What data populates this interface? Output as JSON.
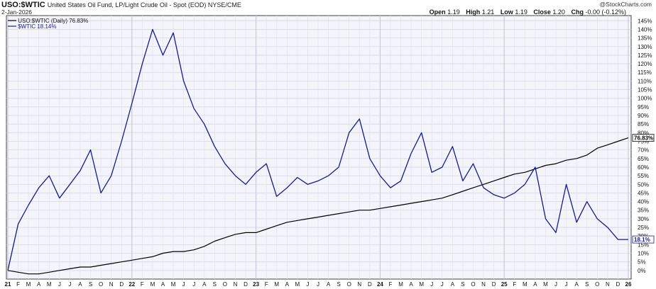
{
  "header": {
    "symbol": "USO:$WTIC",
    "description": "United States Oil Fund, LP/Light Crude Oil - Spot (EOD) NYSE/CME",
    "date": "2-Jan-2026",
    "watermark": "@StockCharts.com",
    "open_label": "Open",
    "open": "1.19",
    "high_label": "High",
    "high": "1.21",
    "low_label": "Low",
    "low": "1.19",
    "close_label": "Close",
    "close": "1.20",
    "chg_label": "Chg",
    "chg": "-0.00 (-0.12%)"
  },
  "colors": {
    "ratio": "#000000",
    "wtic": "#1a1a8c",
    "plot_bg": "#f4f4fb"
  },
  "chart_data": {
    "type": "line",
    "y_unit": "%",
    "ylim": [
      -5,
      148
    ],
    "yticks": [
      "0%",
      "5%",
      "10%",
      "15%",
      "20%",
      "25%",
      "30%",
      "35%",
      "40%",
      "45%",
      "50%",
      "55%",
      "60%",
      "65%",
      "70%",
      "75%",
      "80%",
      "85%",
      "90%",
      "95%",
      "100%",
      "105%",
      "110%",
      "115%",
      "120%",
      "125%",
      "130%",
      "135%",
      "140%",
      "145%"
    ],
    "x_tick_labels": [
      "21",
      "F",
      "M",
      "A",
      "M",
      "J",
      "J",
      "A",
      "S",
      "O",
      "N",
      "D",
      "22",
      "F",
      "M",
      "A",
      "M",
      "J",
      "J",
      "A",
      "S",
      "O",
      "N",
      "D",
      "23",
      "F",
      "M",
      "A",
      "M",
      "J",
      "J",
      "A",
      "S",
      "O",
      "N",
      "D",
      "24",
      "F",
      "M",
      "A",
      "M",
      "J",
      "J",
      "A",
      "S",
      "O",
      "N",
      "D",
      "25",
      "F",
      "M",
      "A",
      "M",
      "J",
      "J",
      "A",
      "S",
      "O",
      "N",
      "D",
      "26"
    ],
    "legend": [
      {
        "label": "USO:$WTIC (Daily) 76.83%"
      },
      {
        "label": "$WTIC 18.14%"
      }
    ],
    "end_labels": {
      "ratio": "76.83%",
      "wtic": "18.1%"
    },
    "series": [
      {
        "name": "USO:$WTIC (Daily)",
        "x": [
          0,
          1,
          2,
          3,
          4,
          5,
          6,
          7,
          8,
          9,
          10,
          11,
          12,
          13,
          14,
          15,
          16,
          17,
          18,
          19,
          20,
          21,
          22,
          23,
          24,
          25,
          26,
          27,
          28,
          29,
          30,
          31,
          32,
          33,
          34,
          35,
          36,
          37,
          38,
          39,
          40,
          41,
          42,
          43,
          44,
          45,
          46,
          47,
          48,
          49,
          50,
          51,
          52,
          53,
          54,
          55,
          56,
          57,
          58,
          59,
          60
        ],
        "values": [
          0,
          -1,
          -2,
          -2,
          -1,
          0,
          1,
          2,
          2,
          3,
          4,
          5,
          6,
          7,
          8,
          10,
          11,
          11,
          12,
          14,
          17,
          19,
          21,
          22,
          22,
          24,
          26,
          28,
          29,
          30,
          31,
          32,
          33,
          34,
          35,
          35,
          36,
          37,
          38,
          39,
          40,
          41,
          42,
          44,
          46,
          48,
          50,
          52,
          54,
          56,
          57,
          59,
          61,
          62,
          64,
          65,
          67,
          71,
          73,
          75,
          77
        ]
      },
      {
        "name": "$WTIC",
        "x": [
          0,
          1,
          2,
          3,
          4,
          5,
          6,
          7,
          8,
          9,
          10,
          11,
          12,
          13,
          14,
          15,
          16,
          17,
          18,
          19,
          20,
          21,
          22,
          23,
          24,
          25,
          26,
          27,
          28,
          29,
          30,
          31,
          32,
          33,
          34,
          35,
          36,
          37,
          38,
          39,
          40,
          41,
          42,
          43,
          44,
          45,
          46,
          47,
          48,
          49,
          50,
          51,
          52,
          53,
          54,
          55,
          56,
          57,
          58,
          59,
          60
        ],
        "values": [
          0,
          27,
          38,
          48,
          55,
          42,
          50,
          58,
          70,
          45,
          55,
          75,
          97,
          120,
          140,
          125,
          138,
          110,
          94,
          85,
          72,
          62,
          55,
          50,
          57,
          62,
          43,
          48,
          54,
          50,
          52,
          55,
          60,
          80,
          88,
          65,
          55,
          48,
          52,
          68,
          80,
          57,
          60,
          72,
          52,
          62,
          48,
          44,
          42,
          45,
          50,
          60,
          30,
          22,
          50,
          28,
          40,
          30,
          25,
          18,
          18
        ]
      }
    ]
  }
}
